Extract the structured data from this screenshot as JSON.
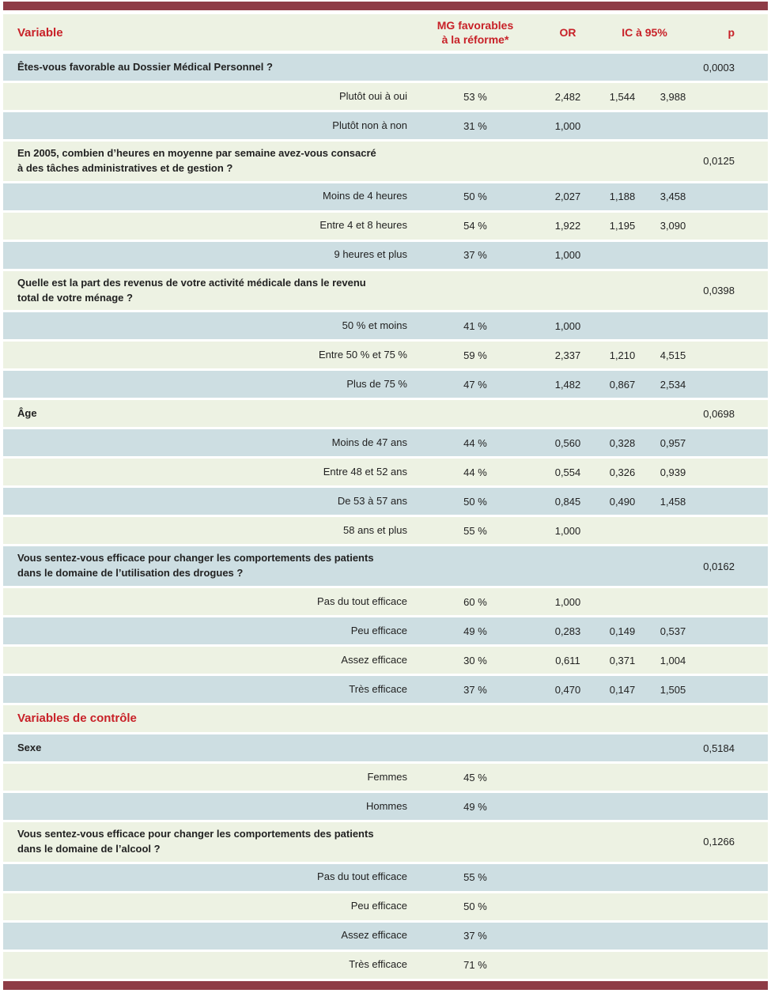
{
  "table": {
    "header": {
      "variable": "Variable",
      "mg_line1": "MG favorables",
      "mg_line2": "à la réforme*",
      "or": "OR",
      "ic": "IC à 95%",
      "p": "p"
    },
    "rows": [
      {
        "l1": "Êtes-vous favorable au Dossier Médical Personnel ?",
        "p": "0,0003"
      },
      {
        "l1": "Plutôt oui à oui",
        "mg": "53 %",
        "or": "2,482",
        "lo": "1,544",
        "hi": "3,988"
      },
      {
        "l1": "Plutôt non à non",
        "mg": "31 %",
        "or": "1,000"
      },
      {
        "l1": "En 2005, combien d’heures en moyenne par semaine avez-vous consacré",
        "l2": "à des tâches administratives et de gestion ?",
        "p": "0,0125"
      },
      {
        "l1": "Moins de 4 heures",
        "mg": "50 %",
        "or": "2,027",
        "lo": "1,188",
        "hi": "3,458"
      },
      {
        "l1": "Entre 4 et 8 heures",
        "mg": "54 %",
        "or": "1,922",
        "lo": "1,195",
        "hi": "3,090"
      },
      {
        "l1": "9 heures et plus",
        "mg": "37 %",
        "or": "1,000"
      },
      {
        "l1": "Quelle est la part des revenus de votre activité médicale dans le revenu",
        "l2": "total de votre ménage ?",
        "p": "0,0398"
      },
      {
        "l1": "50 % et moins",
        "mg": "41 %",
        "or": "1,000"
      },
      {
        "l1": "Entre 50 % et 75 %",
        "mg": "59 %",
        "or": "2,337",
        "lo": "1,210",
        "hi": "4,515"
      },
      {
        "l1": "Plus de 75 %",
        "mg": "47 %",
        "or": "1,482",
        "lo": "0,867",
        "hi": "2,534"
      },
      {
        "l1": "Âge",
        "p": "0,0698"
      },
      {
        "l1": "Moins de 47 ans",
        "mg": "44 %",
        "or": "0,560",
        "lo": "0,328",
        "hi": "0,957"
      },
      {
        "l1": "Entre 48 et 52 ans",
        "mg": "44 %",
        "or": "0,554",
        "lo": "0,326",
        "hi": "0,939"
      },
      {
        "l1": "De 53 à 57 ans",
        "mg": "50 %",
        "or": "0,845",
        "lo": "0,490",
        "hi": "1,458"
      },
      {
        "l1": "58 ans et plus",
        "mg": "55 %",
        "or": "1,000"
      },
      {
        "l1": "Vous sentez-vous efficace pour changer les comportements des patients",
        "l2": "dans le domaine de l’utilisation des drogues ?",
        "p": "0,0162"
      },
      {
        "l1": "Pas du tout efficace",
        "mg": "60 %",
        "or": "1,000"
      },
      {
        "l1": "Peu efficace",
        "mg": "49 %",
        "or": "0,283",
        "lo": "0,149",
        "hi": "0,537"
      },
      {
        "l1": "Assez efficace",
        "mg": "30 %",
        "or": "0,611",
        "lo": "0,371",
        "hi": "1,004"
      },
      {
        "l1": "Très efficace",
        "mg": "37 %",
        "or": "0,470",
        "lo": "0,147",
        "hi": "1,505"
      },
      {
        "l1": "Variables de contrôle"
      },
      {
        "l1": "Sexe",
        "p": "0,5184"
      },
      {
        "l1": "Femmes",
        "mg": "45 %"
      },
      {
        "l1": "Hommes",
        "mg": "49 %"
      },
      {
        "l1": "Vous sentez-vous efficace pour changer les comportements des patients",
        "l2": "dans le domaine de l’alcool ?",
        "p": "0,1266"
      },
      {
        "l1": "Pas du tout efficace",
        "mg": "55 %"
      },
      {
        "l1": "Peu efficace",
        "mg": "50 %"
      },
      {
        "l1": "Assez efficace",
        "mg": "37 %"
      },
      {
        "l1": "Très efficace",
        "mg": "71 %"
      }
    ]
  },
  "colors": {
    "bar_maroon": "#8e3c46",
    "header_text_red": "#c82128",
    "row_blue": "#cddee2",
    "row_green": "#edf2e3",
    "body_text": "#222222"
  }
}
